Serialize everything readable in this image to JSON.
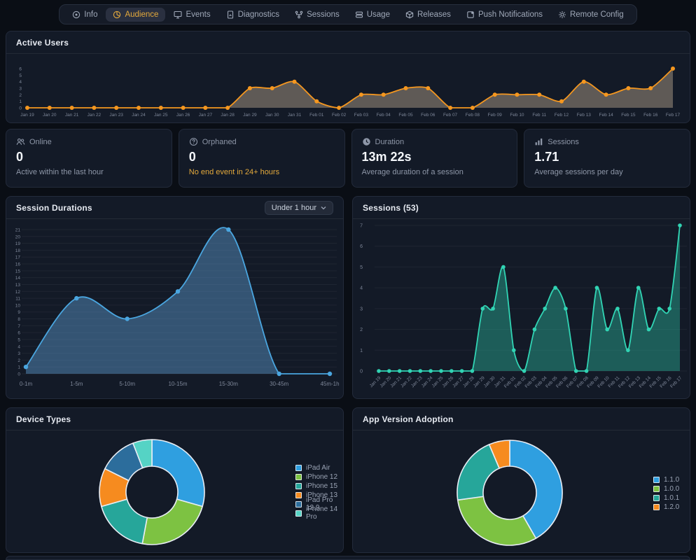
{
  "colors": {
    "page_bg": "#0a0e15",
    "panel_bg": "#131a27",
    "panel_border": "#232b3b",
    "accent_amber": "#e3a93c",
    "orange_line": "#f5971f",
    "blue_line": "#4aa6e0",
    "teal_line": "#31d4b4"
  },
  "nav": {
    "items": [
      {
        "label": "Info"
      },
      {
        "label": "Audience",
        "active": true
      },
      {
        "label": "Events"
      },
      {
        "label": "Diagnostics"
      },
      {
        "label": "Sessions"
      },
      {
        "label": "Usage"
      },
      {
        "label": "Releases"
      },
      {
        "label": "Push Notifications"
      },
      {
        "label": "Remote Config"
      }
    ]
  },
  "active_users_panel": {
    "title": "Active Users"
  },
  "stats": [
    {
      "icon": "users-icon",
      "label": "Online",
      "value": "0",
      "subtitle": "Active within the last hour"
    },
    {
      "icon": "question-icon",
      "label": "Orphaned",
      "value": "0",
      "subtitle": "No end event in 24+ hours"
    },
    {
      "icon": "clock-icon",
      "label": "Duration",
      "value": "13m 22s",
      "subtitle": "Average duration of a session"
    },
    {
      "icon": "bar-chart-icon",
      "label": "Sessions",
      "value": "1.71",
      "subtitle": "Average sessions per day"
    }
  ],
  "session_durations_panel": {
    "title": "Session Durations",
    "dropdown_value": "Under 1 hour"
  },
  "sessions_panel": {
    "title": "Sessions (53)"
  },
  "device_types_panel": {
    "title": "Device Types"
  },
  "app_version_panel": {
    "title": "App Version Adoption"
  },
  "chart_data": [
    {
      "id": "active-users",
      "type": "area",
      "title": "Active Users",
      "x": [
        "Jan 19",
        "Jan 20",
        "Jan 21",
        "Jan 22",
        "Jan 23",
        "Jan 24",
        "Jan 25",
        "Jan 26",
        "Jan 27",
        "Jan 28",
        "Jan 29",
        "Jan 30",
        "Jan 31",
        "Feb 01",
        "Feb 02",
        "Feb 03",
        "Feb 04",
        "Feb 05",
        "Feb 06",
        "Feb 07",
        "Feb 08",
        "Feb 09",
        "Feb 10",
        "Feb 11",
        "Feb 12",
        "Feb 13",
        "Feb 14",
        "Feb 15",
        "Feb 16",
        "Feb 17"
      ],
      "values": [
        0,
        0,
        0,
        0,
        0,
        0,
        0,
        0,
        0,
        0,
        3,
        3,
        4,
        1,
        0,
        2,
        2,
        3,
        3,
        0,
        0,
        2,
        2,
        2,
        1,
        4,
        2,
        3,
        3,
        6
      ],
      "ylim": [
        0,
        6
      ],
      "yticks": [
        0,
        1,
        2,
        3,
        4,
        5,
        6
      ],
      "xlabel": "",
      "ylabel": "",
      "grid": false,
      "legend_position": "none",
      "color": "#f5971f",
      "fill": "rgba(199,178,153,0.42)"
    },
    {
      "id": "session-durations",
      "type": "area",
      "title": "Session Durations",
      "categories": [
        "0-1m",
        "1-5m",
        "5-10m",
        "10-15m",
        "15-30m",
        "30-45m",
        "45m-1h"
      ],
      "values": [
        1,
        11,
        8,
        12,
        21,
        0,
        0
      ],
      "ylim": [
        0,
        21
      ],
      "yticks": [
        0,
        1,
        2,
        3,
        4,
        5,
        6,
        7,
        8,
        9,
        10,
        11,
        12,
        13,
        14,
        15,
        16,
        17,
        18,
        19,
        20,
        21
      ],
      "xlabel": "",
      "ylabel": "",
      "grid": true,
      "legend_position": "none",
      "color": "#4aa6e0",
      "fill": "rgba(90,148,199,0.48)"
    },
    {
      "id": "sessions",
      "type": "area",
      "title": "Sessions (53)",
      "x": [
        "Jan 19",
        "Jan 20",
        "Jan 21",
        "Jan 22",
        "Jan 23",
        "Jan 24",
        "Jan 25",
        "Jan 26",
        "Jan 27",
        "Jan 28",
        "Jan 29",
        "Jan 30",
        "Jan 31",
        "Feb 01",
        "Feb 02",
        "Feb 03",
        "Feb 04",
        "Feb 05",
        "Feb 06",
        "Feb 07",
        "Feb 08",
        "Feb 09",
        "Feb 10",
        "Feb 11",
        "Feb 12",
        "Feb 13",
        "Feb 14",
        "Feb 15",
        "Feb 16",
        "Feb 17"
      ],
      "values": [
        0,
        0,
        0,
        0,
        0,
        0,
        0,
        0,
        0,
        0,
        3,
        3,
        5,
        1,
        0,
        2,
        3,
        4,
        3,
        0,
        0,
        4,
        2,
        3,
        1,
        4,
        2,
        3,
        3,
        7
      ],
      "ylim": [
        0,
        7
      ],
      "yticks": [
        0,
        1,
        2,
        3,
        4,
        5,
        6,
        7
      ],
      "xlabel": "",
      "ylabel": "",
      "grid": true,
      "legend_position": "none",
      "color": "#31d4b4",
      "fill": "rgba(44,186,160,0.42)"
    },
    {
      "id": "device-types",
      "type": "pie",
      "title": "Device Types",
      "labels": [
        "iPad Air",
        "iPhone 12",
        "iPhone 15",
        "iPhone 13",
        "iPad Pro 12.9",
        "iPhone 14 Pro"
      ],
      "values": [
        5,
        4,
        3,
        2,
        2,
        1
      ],
      "colors": [
        "#2f9fe0",
        "#7dc242",
        "#26a69a",
        "#f68b1f",
        "#2c6d9c",
        "#55d3c5"
      ],
      "legend_position": "right",
      "donut": true
    },
    {
      "id": "app-version",
      "type": "pie",
      "title": "App Version Adoption",
      "labels": [
        "1.1.0",
        "1.0.0",
        "1.0.1",
        "1.2.0"
      ],
      "values": [
        41.7,
        31.1,
        20.8,
        6.4
      ],
      "colors": [
        "#2f9fe0",
        "#7dc242",
        "#26a69a",
        "#f68b1f"
      ],
      "legend_position": "right",
      "donut": true
    }
  ]
}
